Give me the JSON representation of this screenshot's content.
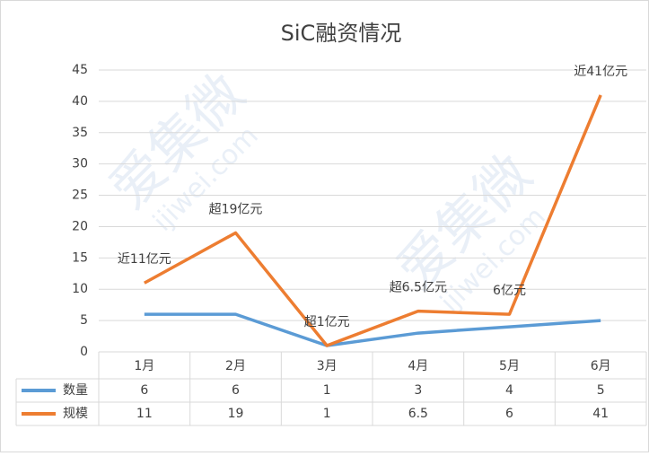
{
  "chart_data": {
    "type": "line",
    "title": "SiC融资情况",
    "watermark": [
      "爱集微",
      "ijiwei.com"
    ],
    "categories": [
      "1月",
      "2月",
      "3月",
      "4月",
      "5月",
      "6月"
    ],
    "series": [
      {
        "name": "数量",
        "color": "#5b9bd5",
        "values": [
          6,
          6,
          1,
          3,
          4,
          5
        ]
      },
      {
        "name": "规模",
        "color": "#ed7d31",
        "values": [
          11,
          19,
          1,
          6.5,
          6,
          41
        ],
        "value_labels": [
          "近11亿元",
          "超19亿元",
          "超1亿元",
          "超6.5亿元",
          "6亿元",
          "近41亿元"
        ]
      }
    ],
    "ylim": [
      0,
      45
    ],
    "yticks": [
      0,
      5,
      10,
      15,
      20,
      25,
      30,
      35,
      40,
      45
    ],
    "grid": true,
    "data_table": true
  }
}
